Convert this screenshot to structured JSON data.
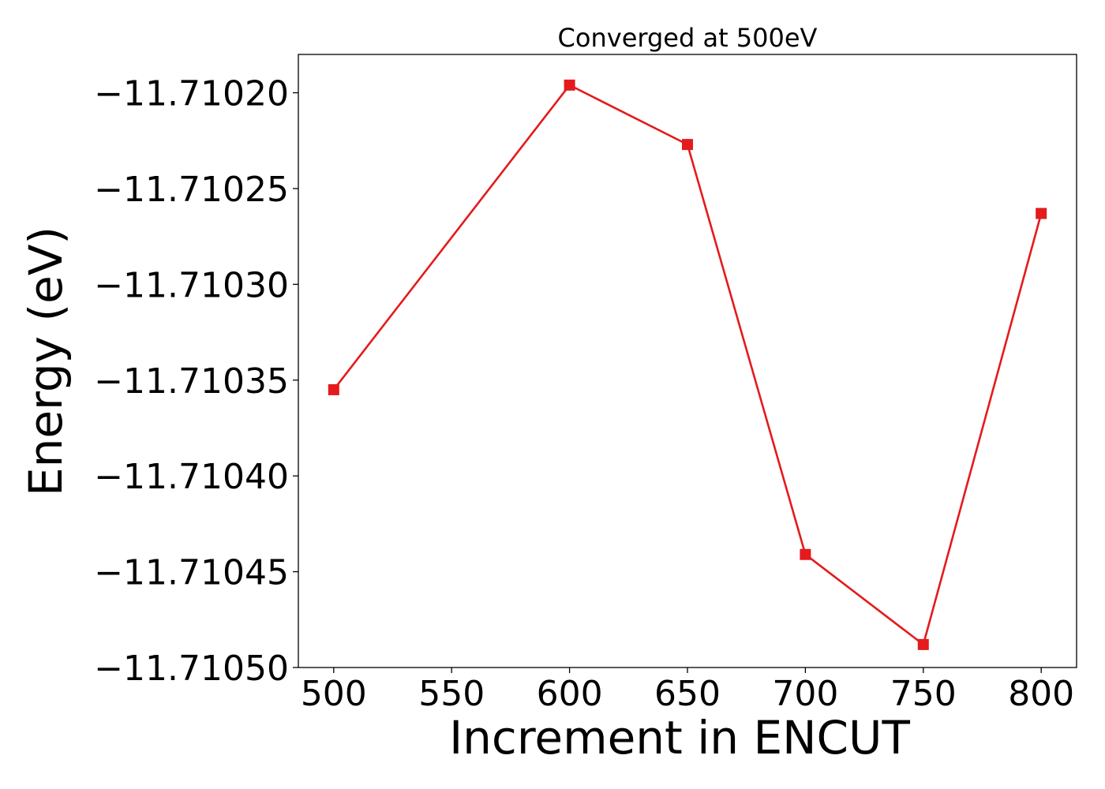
{
  "chart_data": {
    "type": "line",
    "title": "Converged at 500eV",
    "xlabel": "Increment in ENCUT",
    "ylabel": "Energy (eV)",
    "xlim": [
      485,
      815
    ],
    "ylim": [
      -11.7105,
      -11.71018
    ],
    "x_ticks": [
      500,
      550,
      600,
      650,
      700,
      750,
      800
    ],
    "x_tick_labels": [
      "500",
      "550",
      "600",
      "650",
      "700",
      "750",
      "800"
    ],
    "y_ticks": [
      -11.7102,
      -11.71025,
      -11.7103,
      -11.71035,
      -11.7104,
      -11.71045,
      -11.7105
    ],
    "y_tick_labels": [
      "−11.71020",
      "−11.71025",
      "−11.71030",
      "−11.71035",
      "−11.71040",
      "−11.71045",
      "−11.71050"
    ],
    "grid": false,
    "series": [
      {
        "color": "#e41a1c",
        "marker": "square",
        "x": [
          500,
          600,
          650,
          700,
          750,
          800
        ],
        "y": [
          -11.710355,
          -11.710196,
          -11.710227,
          -11.710441,
          -11.710488,
          -11.710263
        ]
      }
    ]
  }
}
